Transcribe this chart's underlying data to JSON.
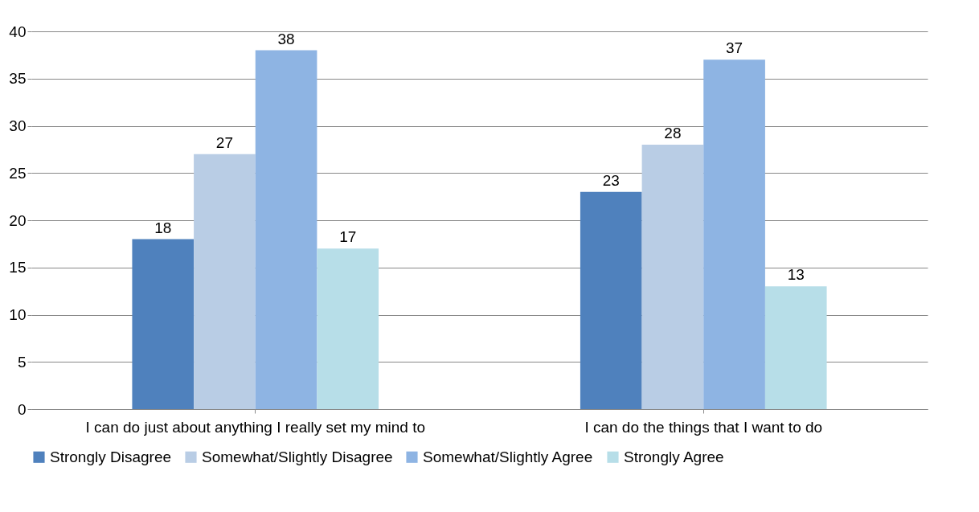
{
  "chart_data": {
    "type": "bar",
    "categories": [
      "I can do just about anything I really set my mind to",
      "I can do the things that I want to do"
    ],
    "series": [
      {
        "name": "Strongly Disagree",
        "color": "#4f81bd",
        "values": [
          18,
          23
        ]
      },
      {
        "name": "Somewhat/Slightly Disagree",
        "color": "#b9cde5",
        "values": [
          27,
          28
        ]
      },
      {
        "name": "Somewhat/Slightly Agree",
        "color": "#8eb4e3",
        "values": [
          38,
          37
        ]
      },
      {
        "name": "Strongly Agree",
        "color": "#b7dee8",
        "values": [
          17,
          13
        ]
      }
    ],
    "ylim": [
      0,
      40
    ],
    "yticks": [
      0,
      5,
      10,
      15,
      20,
      25,
      30,
      35,
      40
    ],
    "grid": "y",
    "legend": "bottom",
    "data_labels": true
  }
}
